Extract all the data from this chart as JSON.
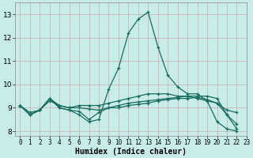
{
  "xlabel": "Humidex (Indice chaleur)",
  "xlim": [
    -0.5,
    23
  ],
  "ylim": [
    7.8,
    13.5
  ],
  "yticks": [
    8,
    9,
    10,
    11,
    12,
    13
  ],
  "xticks": [
    0,
    1,
    2,
    3,
    4,
    5,
    6,
    7,
    8,
    9,
    10,
    11,
    12,
    13,
    14,
    15,
    16,
    17,
    18,
    19,
    20,
    21,
    22,
    23
  ],
  "bg_color": "#c8ede8",
  "grid_color": "#c8b8b8",
  "line_color": "#1a6b60",
  "lines": [
    [
      9.1,
      8.7,
      8.9,
      9.4,
      9.0,
      8.9,
      8.7,
      8.4,
      8.5,
      9.8,
      10.7,
      12.2,
      12.8,
      13.1,
      11.6,
      10.4,
      9.9,
      9.6,
      9.6,
      9.3,
      8.4,
      8.1,
      8.0
    ],
    [
      9.1,
      8.7,
      8.9,
      9.4,
      9.1,
      9.0,
      9.1,
      9.1,
      9.1,
      9.2,
      9.3,
      9.4,
      9.5,
      9.6,
      9.6,
      9.6,
      9.5,
      9.5,
      9.4,
      9.3,
      9.2,
      8.9,
      8.8
    ],
    [
      9.1,
      8.8,
      8.9,
      9.3,
      9.1,
      9.0,
      9.0,
      8.95,
      8.9,
      9.0,
      9.0,
      9.1,
      9.15,
      9.2,
      9.3,
      9.35,
      9.4,
      9.4,
      9.45,
      9.35,
      9.2,
      8.7,
      8.1
    ],
    [
      9.1,
      8.7,
      8.9,
      9.4,
      9.0,
      8.9,
      8.85,
      8.5,
      8.8,
      9.0,
      9.1,
      9.2,
      9.25,
      9.3,
      9.35,
      9.4,
      9.45,
      9.5,
      9.5,
      9.5,
      9.4,
      8.7,
      8.3
    ]
  ]
}
